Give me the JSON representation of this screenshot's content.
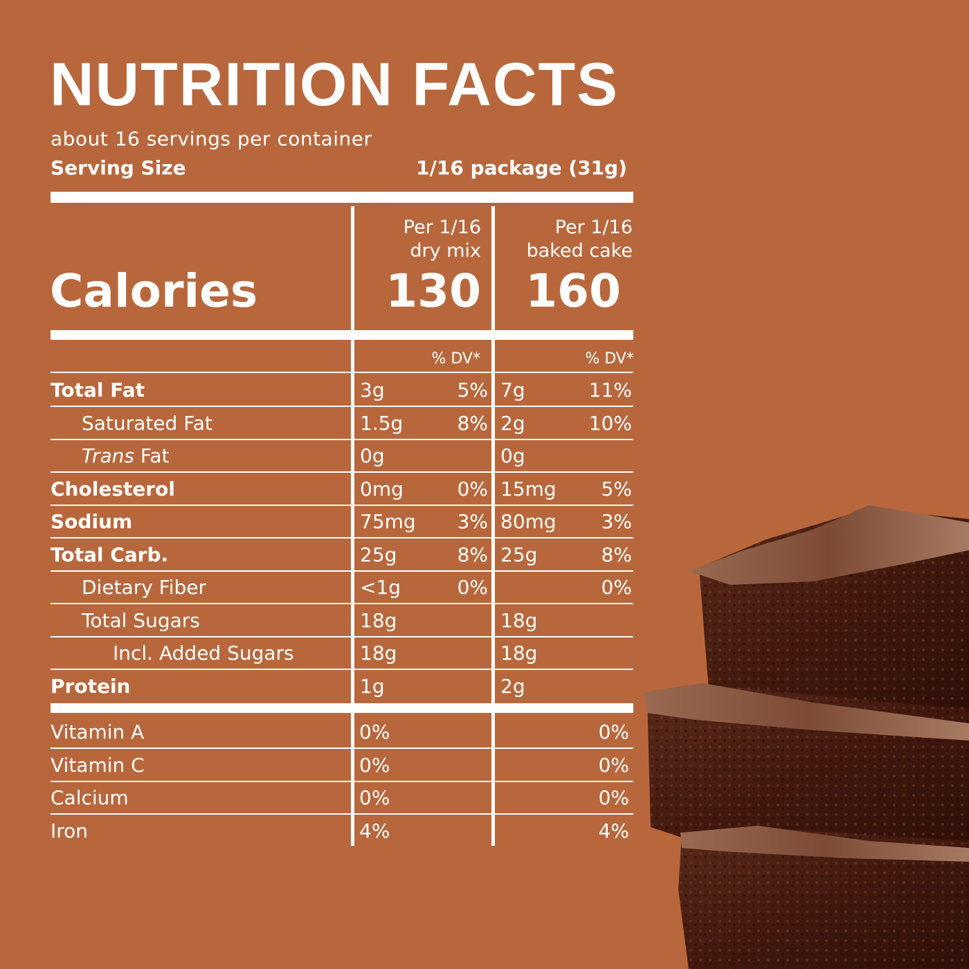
{
  "title": "NUTRITION  FACTS",
  "servings_per_container": "about 16 servings per container",
  "serving_size": {
    "label": "Serving Size",
    "value": "1/16 package (31g)"
  },
  "columns": {
    "dry": {
      "line1": "Per 1/16",
      "line2": "dry mix",
      "calories": "130",
      "dv_header": "% DV*"
    },
    "baked": {
      "line1": "Per 1/16",
      "line2": "baked cake",
      "calories": "160",
      "dv_header": "% DV*"
    }
  },
  "calories_label": "Calories",
  "nutrients": [
    {
      "name": "Total Fat",
      "bold": true,
      "dry_amount": "3g",
      "dry_dv": "5%",
      "baked_amount": "7g",
      "baked_dv": "11%"
    },
    {
      "name": "Saturated Fat",
      "bold": false,
      "dry_amount": "1.5g",
      "dry_dv": "8%",
      "baked_amount": "2g",
      "baked_dv": "10%"
    },
    {
      "name_italic": "Trans",
      "name": " Fat",
      "bold": false,
      "dry_amount": "0g",
      "dry_dv": "",
      "baked_amount": "0g",
      "baked_dv": ""
    },
    {
      "name": "Cholesterol",
      "bold": true,
      "dry_amount": "0mg",
      "dry_dv": "0%",
      "baked_amount": "15mg",
      "baked_dv": "5%"
    },
    {
      "name": "Sodium",
      "bold": true,
      "dry_amount": "75mg",
      "dry_dv": "3%",
      "baked_amount": "80mg",
      "baked_dv": "3%"
    },
    {
      "name": "Total Carb.",
      "bold": true,
      "dry_amount": "25g",
      "dry_dv": "8%",
      "baked_amount": "25g",
      "baked_dv": "8%"
    },
    {
      "name": "Dietary Fiber",
      "bold": false,
      "dry_amount": "<1g",
      "dry_dv": "0%",
      "baked_amount": "",
      "baked_dv": "0%"
    },
    {
      "name": "Total Sugars",
      "bold": false,
      "dry_amount": "18g",
      "dry_dv": "",
      "baked_amount": "18g",
      "baked_dv": ""
    },
    {
      "name": "Incl. Added Sugars",
      "bold": false,
      "dry_amount": "18g",
      "dry_dv": "",
      "baked_amount": "18g",
      "baked_dv": ""
    },
    {
      "name": "Protein",
      "bold": true,
      "dry_amount": "1g",
      "dry_dv": "",
      "baked_amount": "2g",
      "baked_dv": ""
    }
  ],
  "vitamins": [
    {
      "name": "Vitamin A",
      "dry": "0%",
      "baked": "0%"
    },
    {
      "name": "Vitamin C",
      "dry": "0%",
      "baked": "0%"
    },
    {
      "name": "Calcium",
      "dry": "0%",
      "baked": "0%"
    },
    {
      "name": "Iron",
      "dry": "4%",
      "baked": "4%"
    }
  ],
  "colors": {
    "background": "#b8673c",
    "text": "#ffffff",
    "brownie_dark": "#4a2014",
    "brownie_top": "#8a5a42"
  }
}
